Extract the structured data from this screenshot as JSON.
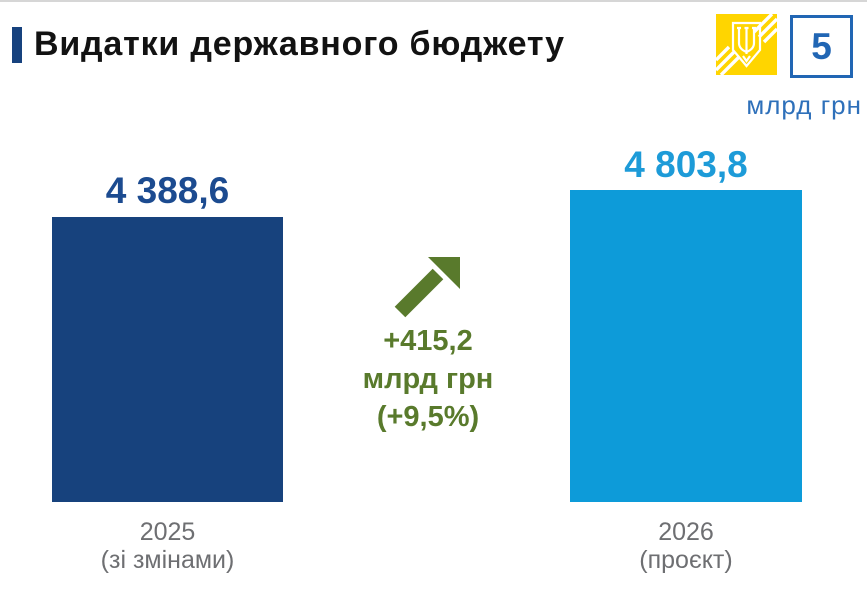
{
  "slide": {
    "title": "Видатки державного бюджету",
    "slide_number": "5",
    "unit_label": "млрд грн"
  },
  "chart_data": {
    "type": "bar",
    "title": "Видатки державного бюджету",
    "ylabel": "млрд грн",
    "xlabel": "",
    "grid": false,
    "legend": false,
    "ylim": [
      0,
      4803.8
    ],
    "categories": [
      "2025 (зі змінами)",
      "2026 (проєкт)"
    ],
    "values": [
      4388.6,
      4803.8
    ],
    "bars": [
      {
        "year": "2025",
        "note": "(зі змінами)",
        "value": 4388.6,
        "value_label": "4 388,6",
        "color": "#17427d",
        "label_color": "#1c4b90"
      },
      {
        "year": "2026",
        "note": "(проєкт)",
        "value": 4803.8,
        "value_label": "4 803,8",
        "color": "#0d9bd9",
        "label_color": "#1d9bd8"
      }
    ],
    "annotation": {
      "lines": [
        "+415,2",
        "млрд грн",
        "(+9,5%)"
      ],
      "delta_value": 415.2,
      "delta_percent": 9.5,
      "color": "#597a2c",
      "icon": "up-right-arrow"
    }
  },
  "colors": {
    "accent_navy": "#17427e",
    "bar_2025": "#17427d",
    "bar_2026": "#0d9bd9",
    "delta_green": "#597a2c",
    "badge_blue": "#2166b4",
    "unit_blue": "#2e70ba",
    "label_gray": "#6e6f72",
    "logo_yellow": "#ffd500",
    "top_rule_gray": "#d6d6d6"
  }
}
